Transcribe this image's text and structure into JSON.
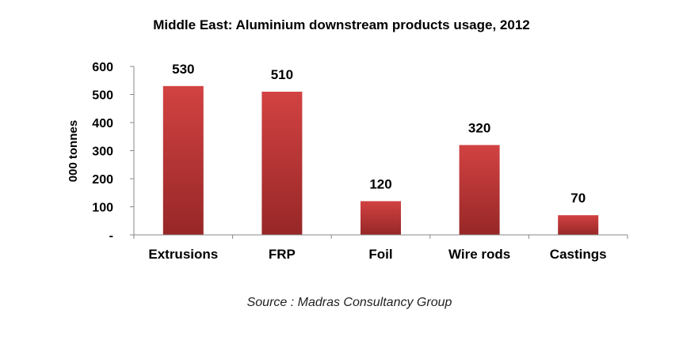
{
  "chart_data": {
    "type": "bar",
    "title": "Middle East: Aluminium downstream products usage, 2012",
    "xlabel": "",
    "ylabel": "000 tonnes",
    "categories": [
      "Extrusions",
      "FRP",
      "Foil",
      "Wire rods",
      "Castings"
    ],
    "values": [
      530,
      510,
      120,
      320,
      70
    ],
    "data_labels": [
      "530",
      "510",
      "120",
      "320",
      "70"
    ],
    "ylim": [
      0,
      600
    ],
    "yticks": [
      0,
      100,
      200,
      300,
      400,
      500,
      600
    ],
    "ytick_labels": [
      "-",
      "100",
      "200",
      "300",
      "400",
      "500",
      "600"
    ],
    "grid": false,
    "legend": "none",
    "bar_color_top": "#d24242",
    "bar_color_bottom": "#972727",
    "source": "Source : Madras Consultancy Group"
  }
}
